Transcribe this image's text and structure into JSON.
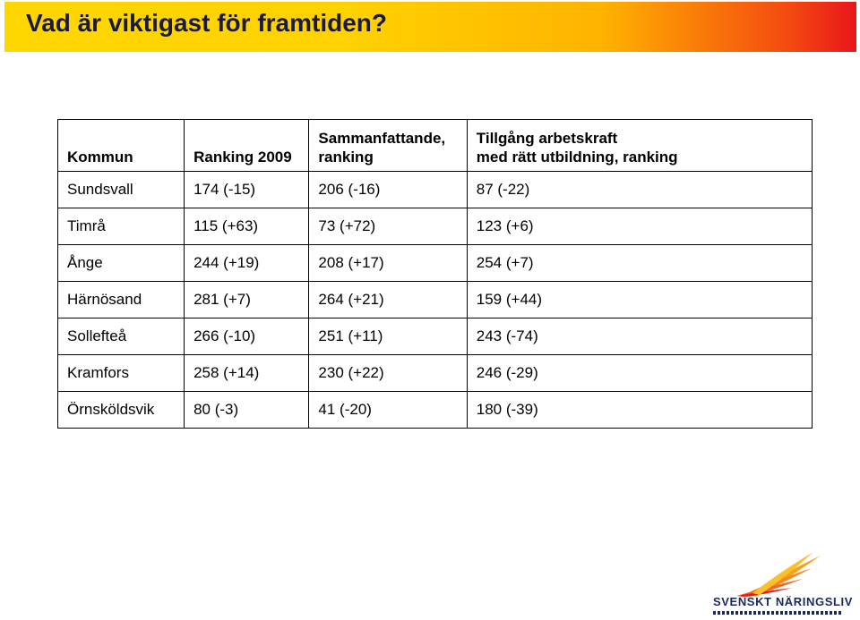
{
  "title": "Vad är viktigast för framtiden?",
  "table": {
    "headers": [
      [
        "Kommun"
      ],
      [
        "Ranking 2009"
      ],
      [
        "Sammanfattande,",
        "ranking"
      ],
      [
        "Tillgång arbetskraft",
        "med rätt utbildning, ranking"
      ]
    ],
    "rows": [
      [
        "Sundsvall",
        "174 (-15)",
        "206 (-16)",
        "87 (-22)"
      ],
      [
        "Timrå",
        "115 (+63)",
        "73 (+72)",
        "123 (+6)"
      ],
      [
        "Ånge",
        "244 (+19)",
        "208 (+17)",
        "254 (+7)"
      ],
      [
        "Härnösand",
        "281 (+7)",
        "264 (+21)",
        "159 (+44)"
      ],
      [
        "Sollefteå",
        "266 (-10)",
        "251 (+11)",
        "243 (-74)"
      ],
      [
        "Kramfors",
        "258 (+14)",
        "230 (+22)",
        "246 (-29)"
      ],
      [
        "Örnsköldsvik",
        "80 (-3)",
        "41 (-20)",
        "180 (-39)"
      ]
    ]
  },
  "logo": {
    "text": "SVENSKT NÄRINGSLIV",
    "icon": "sun-rays-logo-icon"
  },
  "colors": {
    "banner_start": "#ffd700",
    "banner_end": "#e8161b",
    "title_text": "#1a1a3e",
    "logo_navy": "#1a2a5e",
    "logo_orange": "#f7a21b"
  }
}
